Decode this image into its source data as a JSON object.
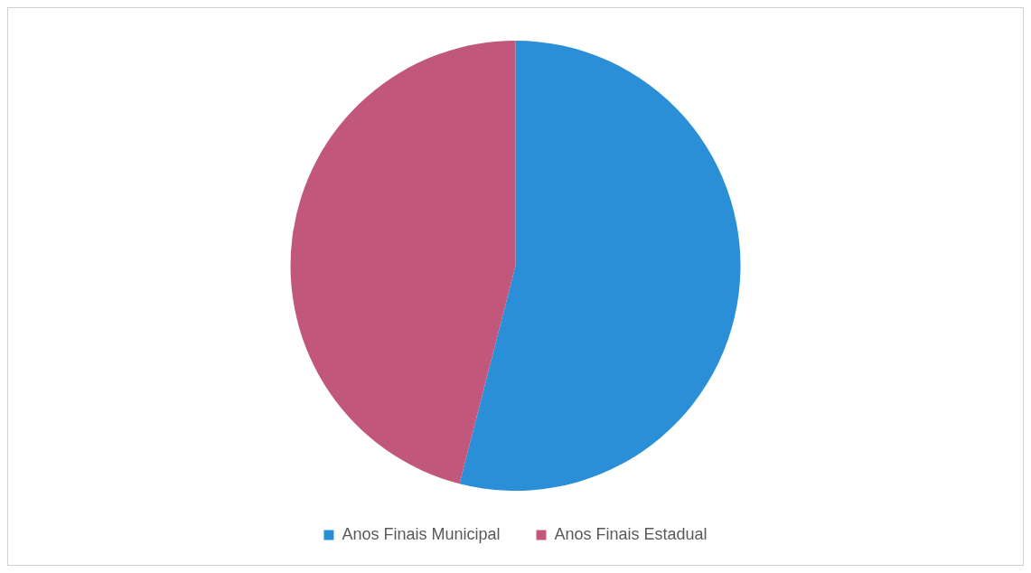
{
  "chart_data": {
    "type": "pie",
    "categories": [
      "Anos Finais Municipal",
      "Anos Finais Estadual"
    ],
    "values": [
      54,
      46
    ],
    "colors": [
      "#2a8fd6",
      "#c2577c"
    ],
    "legend": "bottom"
  }
}
